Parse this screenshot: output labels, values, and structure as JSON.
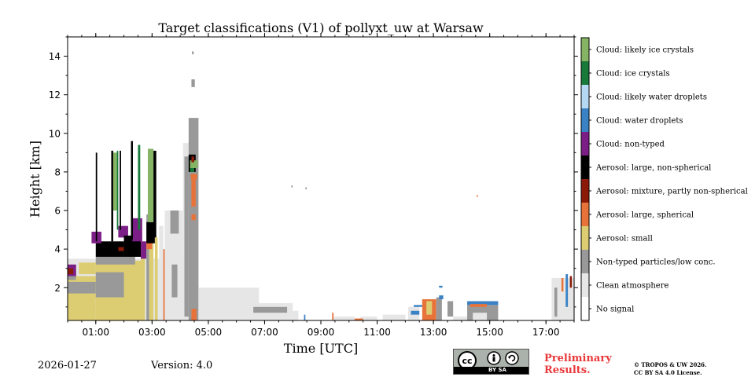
{
  "chart_data": {
    "type": "heatmap",
    "title": "Target classifications (V1) of pollyxt_uw at Warsaw",
    "xlabel": "Time [UTC]",
    "ylabel": "Height [km]",
    "xlim": [
      0.0,
      18.0
    ],
    "ylim": [
      0.3,
      15.0
    ],
    "xticks": [
      1,
      3,
      5,
      7,
      9,
      11,
      13,
      15,
      17
    ],
    "xtick_labels": [
      "01:00",
      "03:00",
      "05:00",
      "07:00",
      "09:00",
      "11:00",
      "13:00",
      "15:00",
      "17:00"
    ],
    "yticks": [
      2,
      4,
      6,
      8,
      10,
      12,
      14
    ],
    "ytick_labels": [
      "2",
      "4",
      "6",
      "8",
      "10",
      "12",
      "14"
    ],
    "legend": [
      {
        "label": "No signal",
        "color": "#ffffff"
      },
      {
        "label": "Clean atmosphere",
        "color": "#e6e6e6"
      },
      {
        "label": "Non-typed particles/low conc.",
        "color": "#999999"
      },
      {
        "label": "Aerosol: small",
        "color": "#dccd73"
      },
      {
        "label": "Aerosol: large, spherical",
        "color": "#e8733a"
      },
      {
        "label": "Aerosol: mixture, partly non-spherical",
        "color": "#8b1a08"
      },
      {
        "label": "Aerosol: large, non-spherical",
        "color": "#000000"
      },
      {
        "label": "Cloud: non-typed",
        "color": "#7b1f86"
      },
      {
        "label": "Cloud: water droplets",
        "color": "#3b82c4"
      },
      {
        "label": "Cloud: likely water droplets",
        "color": "#b5d9f2"
      },
      {
        "label": "Cloud: ice crystals",
        "color": "#177a3a"
      },
      {
        "label": "Cloud: likely ice crystals",
        "color": "#84b464"
      }
    ],
    "regions": [
      {
        "class": 1,
        "t0": 0.0,
        "t1": 4.25,
        "h0": 0.3,
        "h1": 3.5
      },
      {
        "class": 3,
        "t0": 0.0,
        "t1": 1.0,
        "h0": 0.3,
        "h1": 2.6
      },
      {
        "class": 2,
        "t0": 0.0,
        "t1": 1.0,
        "h0": 1.7,
        "h1": 2.3
      },
      {
        "class": 2,
        "t0": 0.0,
        "t1": 0.3,
        "h0": 2.4,
        "h1": 2.9
      },
      {
        "class": 7,
        "t0": 0.0,
        "t1": 0.3,
        "h0": 2.6,
        "h1": 3.2
      },
      {
        "class": 5,
        "t0": 0.0,
        "t1": 0.2,
        "h0": 2.7,
        "h1": 3.0
      },
      {
        "class": 3,
        "t0": 0.4,
        "t1": 1.0,
        "h0": 2.7,
        "h1": 3.3
      },
      {
        "class": 3,
        "t0": 1.0,
        "t1": 2.6,
        "h0": 0.3,
        "h1": 3.4
      },
      {
        "class": 2,
        "t0": 1.0,
        "t1": 2.0,
        "h0": 1.5,
        "h1": 2.8
      },
      {
        "class": 2,
        "t0": 1.0,
        "t1": 2.4,
        "h0": 3.2,
        "h1": 3.6
      },
      {
        "class": 6,
        "t0": 1.0,
        "t1": 2.0,
        "h0": 3.6,
        "h1": 4.4
      },
      {
        "class": 5,
        "t0": 1.8,
        "t1": 2.1,
        "h0": 3.9,
        "h1": 4.1
      },
      {
        "class": 7,
        "t0": 0.85,
        "t1": 1.2,
        "h0": 4.3,
        "h1": 4.9
      },
      {
        "class": 7,
        "t0": 1.8,
        "t1": 2.15,
        "h0": 4.6,
        "h1": 5.2
      },
      {
        "class": 6,
        "t0": 2.0,
        "t1": 2.6,
        "h0": 3.6,
        "h1": 4.7
      },
      {
        "class": 7,
        "t0": 2.3,
        "t1": 2.65,
        "h0": 4.4,
        "h1": 5.6
      },
      {
        "class": 6,
        "t0": 1.0,
        "t1": 1.05,
        "h0": 4.4,
        "h1": 9.0
      },
      {
        "class": 6,
        "t0": 1.55,
        "t1": 1.62,
        "h0": 4.4,
        "h1": 9.1
      },
      {
        "class": 11,
        "t0": 1.62,
        "t1": 1.75,
        "h0": 6.0,
        "h1": 9.0
      },
      {
        "class": 10,
        "t0": 1.75,
        "t1": 1.8,
        "h0": 5.0,
        "h1": 9.1
      },
      {
        "class": 6,
        "t0": 1.85,
        "t1": 1.9,
        "h0": 5.0,
        "h1": 9.1
      },
      {
        "class": 6,
        "t0": 2.25,
        "t1": 2.32,
        "h0": 4.5,
        "h1": 9.6
      },
      {
        "class": 10,
        "t0": 2.5,
        "t1": 2.58,
        "h0": 5.0,
        "h1": 9.4
      },
      {
        "class": 3,
        "t0": 2.6,
        "t1": 2.75,
        "h0": 0.3,
        "h1": 3.5
      },
      {
        "class": 7,
        "t0": 2.6,
        "t1": 2.8,
        "h0": 3.5,
        "h1": 4.4
      },
      {
        "class": 2,
        "t0": 2.8,
        "t1": 2.9,
        "h0": 0.3,
        "h1": 5.8
      },
      {
        "class": 3,
        "t0": 2.9,
        "t1": 3.05,
        "h0": 0.3,
        "h1": 4.5
      },
      {
        "class": 4,
        "t0": 2.8,
        "t1": 3.0,
        "h0": 4.0,
        "h1": 4.6
      },
      {
        "class": 6,
        "t0": 2.8,
        "t1": 3.1,
        "h0": 4.3,
        "h1": 5.4
      },
      {
        "class": 11,
        "t0": 2.85,
        "t1": 3.05,
        "h0": 5.4,
        "h1": 9.2
      },
      {
        "class": 6,
        "t0": 3.05,
        "t1": 3.15,
        "h0": 4.6,
        "h1": 9.1
      },
      {
        "class": 3,
        "t0": 3.1,
        "t1": 3.2,
        "h0": 0.3,
        "h1": 4.6
      },
      {
        "class": 1,
        "t0": 3.25,
        "t1": 3.4,
        "h0": 0.3,
        "h1": 5.2
      },
      {
        "class": 4,
        "t0": 3.4,
        "t1": 3.45,
        "h0": 0.3,
        "h1": 4.0
      },
      {
        "class": 1,
        "t0": 3.45,
        "t1": 4.1,
        "h0": 0.3,
        "h1": 6.0
      },
      {
        "class": 2,
        "t0": 3.65,
        "t1": 3.95,
        "h0": 4.8,
        "h1": 6.0
      },
      {
        "class": 2,
        "t0": 3.7,
        "t1": 3.9,
        "h0": 1.5,
        "h1": 3.2
      },
      {
        "class": 1,
        "t0": 4.1,
        "t1": 4.5,
        "h0": 0.3,
        "h1": 9.5
      },
      {
        "class": 2,
        "t0": 4.15,
        "t1": 4.3,
        "h0": 0.5,
        "h1": 8.8
      },
      {
        "class": 2,
        "t0": 4.3,
        "t1": 4.65,
        "h0": 0.3,
        "h1": 10.8
      },
      {
        "class": 4,
        "t0": 4.4,
        "t1": 4.58,
        "h0": 0.3,
        "h1": 0.9
      },
      {
        "class": 4,
        "t0": 4.4,
        "t1": 4.55,
        "h0": 5.5,
        "h1": 7.6
      },
      {
        "class": 2,
        "t0": 4.35,
        "t1": 4.6,
        "h0": 5.8,
        "h1": 6.2
      },
      {
        "class": 4,
        "t0": 4.38,
        "t1": 4.6,
        "h0": 7.6,
        "h1": 7.9
      },
      {
        "class": 6,
        "t0": 4.3,
        "t1": 4.55,
        "h0": 8.0,
        "h1": 8.9
      },
      {
        "class": 10,
        "t0": 4.35,
        "t1": 4.5,
        "h0": 8.0,
        "h1": 8.3
      },
      {
        "class": 11,
        "t0": 4.35,
        "t1": 4.62,
        "h0": 8.2,
        "h1": 8.6
      },
      {
        "class": 5,
        "t0": 4.4,
        "t1": 4.5,
        "h0": 8.5,
        "h1": 8.8
      },
      {
        "class": 2,
        "t0": 4.4,
        "t1": 4.52,
        "h0": 12.4,
        "h1": 12.8
      },
      {
        "class": 2,
        "t0": 4.42,
        "t1": 4.48,
        "h0": 14.1,
        "h1": 14.25
      },
      {
        "class": 1,
        "t0": 4.65,
        "t1": 6.8,
        "h0": 0.3,
        "h1": 2.0
      },
      {
        "class": 1,
        "t0": 6.8,
        "t1": 8.0,
        "h0": 0.3,
        "h1": 1.2
      },
      {
        "class": 2,
        "t0": 6.6,
        "t1": 7.8,
        "h0": 0.7,
        "h1": 1.0
      },
      {
        "class": 1,
        "t0": 8.0,
        "t1": 8.2,
        "h0": 0.3,
        "h1": 0.8
      },
      {
        "class": 8,
        "t0": 8.4,
        "t1": 8.45,
        "h0": 0.3,
        "h1": 0.6
      },
      {
        "class": 4,
        "t0": 9.4,
        "t1": 9.45,
        "h0": 0.3,
        "h1": 0.7
      },
      {
        "class": 1,
        "t0": 9.45,
        "t1": 10.2,
        "h0": 0.3,
        "h1": 0.5
      },
      {
        "class": 1,
        "t0": 10.4,
        "t1": 11.0,
        "h0": 0.3,
        "h1": 0.5
      },
      {
        "class": 4,
        "t0": 10.2,
        "t1": 10.5,
        "h0": 0.3,
        "h1": 0.4
      },
      {
        "class": 1,
        "t0": 11.2,
        "t1": 12.0,
        "h0": 0.3,
        "h1": 0.6
      },
      {
        "class": 1,
        "t0": 12.1,
        "t1": 12.5,
        "h0": 0.3,
        "h1": 1.0
      },
      {
        "class": 8,
        "t0": 12.2,
        "t1": 12.5,
        "h0": 0.6,
        "h1": 0.8
      },
      {
        "class": 8,
        "t0": 12.3,
        "t1": 12.6,
        "h0": 1.0,
        "h1": 1.1
      },
      {
        "class": 4,
        "t0": 12.6,
        "t1": 13.1,
        "h0": 0.3,
        "h1": 1.4
      },
      {
        "class": 3,
        "t0": 12.75,
        "t1": 12.95,
        "h0": 0.6,
        "h1": 1.3
      },
      {
        "class": 2,
        "t0": 13.1,
        "t1": 13.3,
        "h0": 0.3,
        "h1": 1.5
      },
      {
        "class": 8,
        "t0": 13.2,
        "t1": 13.35,
        "h0": 1.4,
        "h1": 1.6
      },
      {
        "class": 8,
        "t0": 13.2,
        "t1": 13.32,
        "h0": 2.0,
        "h1": 2.1
      },
      {
        "class": 2,
        "t0": 13.5,
        "t1": 13.7,
        "h0": 0.5,
        "h1": 1.3
      },
      {
        "class": 1,
        "t0": 13.7,
        "t1": 14.2,
        "h0": 0.3,
        "h1": 0.5
      },
      {
        "class": 2,
        "t0": 14.2,
        "t1": 15.3,
        "h0": 0.3,
        "h1": 1.1
      },
      {
        "class": 1,
        "t0": 14.4,
        "t1": 14.9,
        "h0": 0.3,
        "h1": 0.7
      },
      {
        "class": 8,
        "t0": 14.2,
        "t1": 15.3,
        "h0": 1.1,
        "h1": 1.3
      },
      {
        "class": 4,
        "t0": 14.3,
        "t1": 14.9,
        "h0": 1.0,
        "h1": 1.15
      },
      {
        "class": 4,
        "t0": 14.54,
        "t1": 14.58,
        "h0": 6.7,
        "h1": 6.8
      },
      {
        "class": 1,
        "t0": 17.2,
        "t1": 18.0,
        "h0": 0.3,
        "h1": 2.5
      },
      {
        "class": 2,
        "t0": 17.3,
        "t1": 17.4,
        "h0": 0.5,
        "h1": 2.0
      },
      {
        "class": 4,
        "t0": 17.55,
        "t1": 17.62,
        "h0": 1.8,
        "h1": 2.5
      },
      {
        "class": 8,
        "t0": 17.7,
        "t1": 17.78,
        "h0": 1.0,
        "h1": 2.7
      },
      {
        "class": 5,
        "t0": 17.85,
        "t1": 17.92,
        "h0": 2.0,
        "h1": 2.6
      },
      {
        "class": 2,
        "t0": 7.95,
        "t1": 8.0,
        "h0": 7.2,
        "h1": 7.3
      },
      {
        "class": 2,
        "t0": 8.45,
        "t1": 8.5,
        "h0": 7.1,
        "h1": 7.2
      }
    ]
  },
  "footer": {
    "date": "2026-01-27",
    "version": "Version: 4.0",
    "cc_label": "BY SA",
    "preliminary_line1": "Preliminary",
    "preliminary_line2": "Results.",
    "copyright_line1": "© TROPOS & UW 2026.",
    "copyright_line2": "CC BY SA 4.0 License."
  }
}
